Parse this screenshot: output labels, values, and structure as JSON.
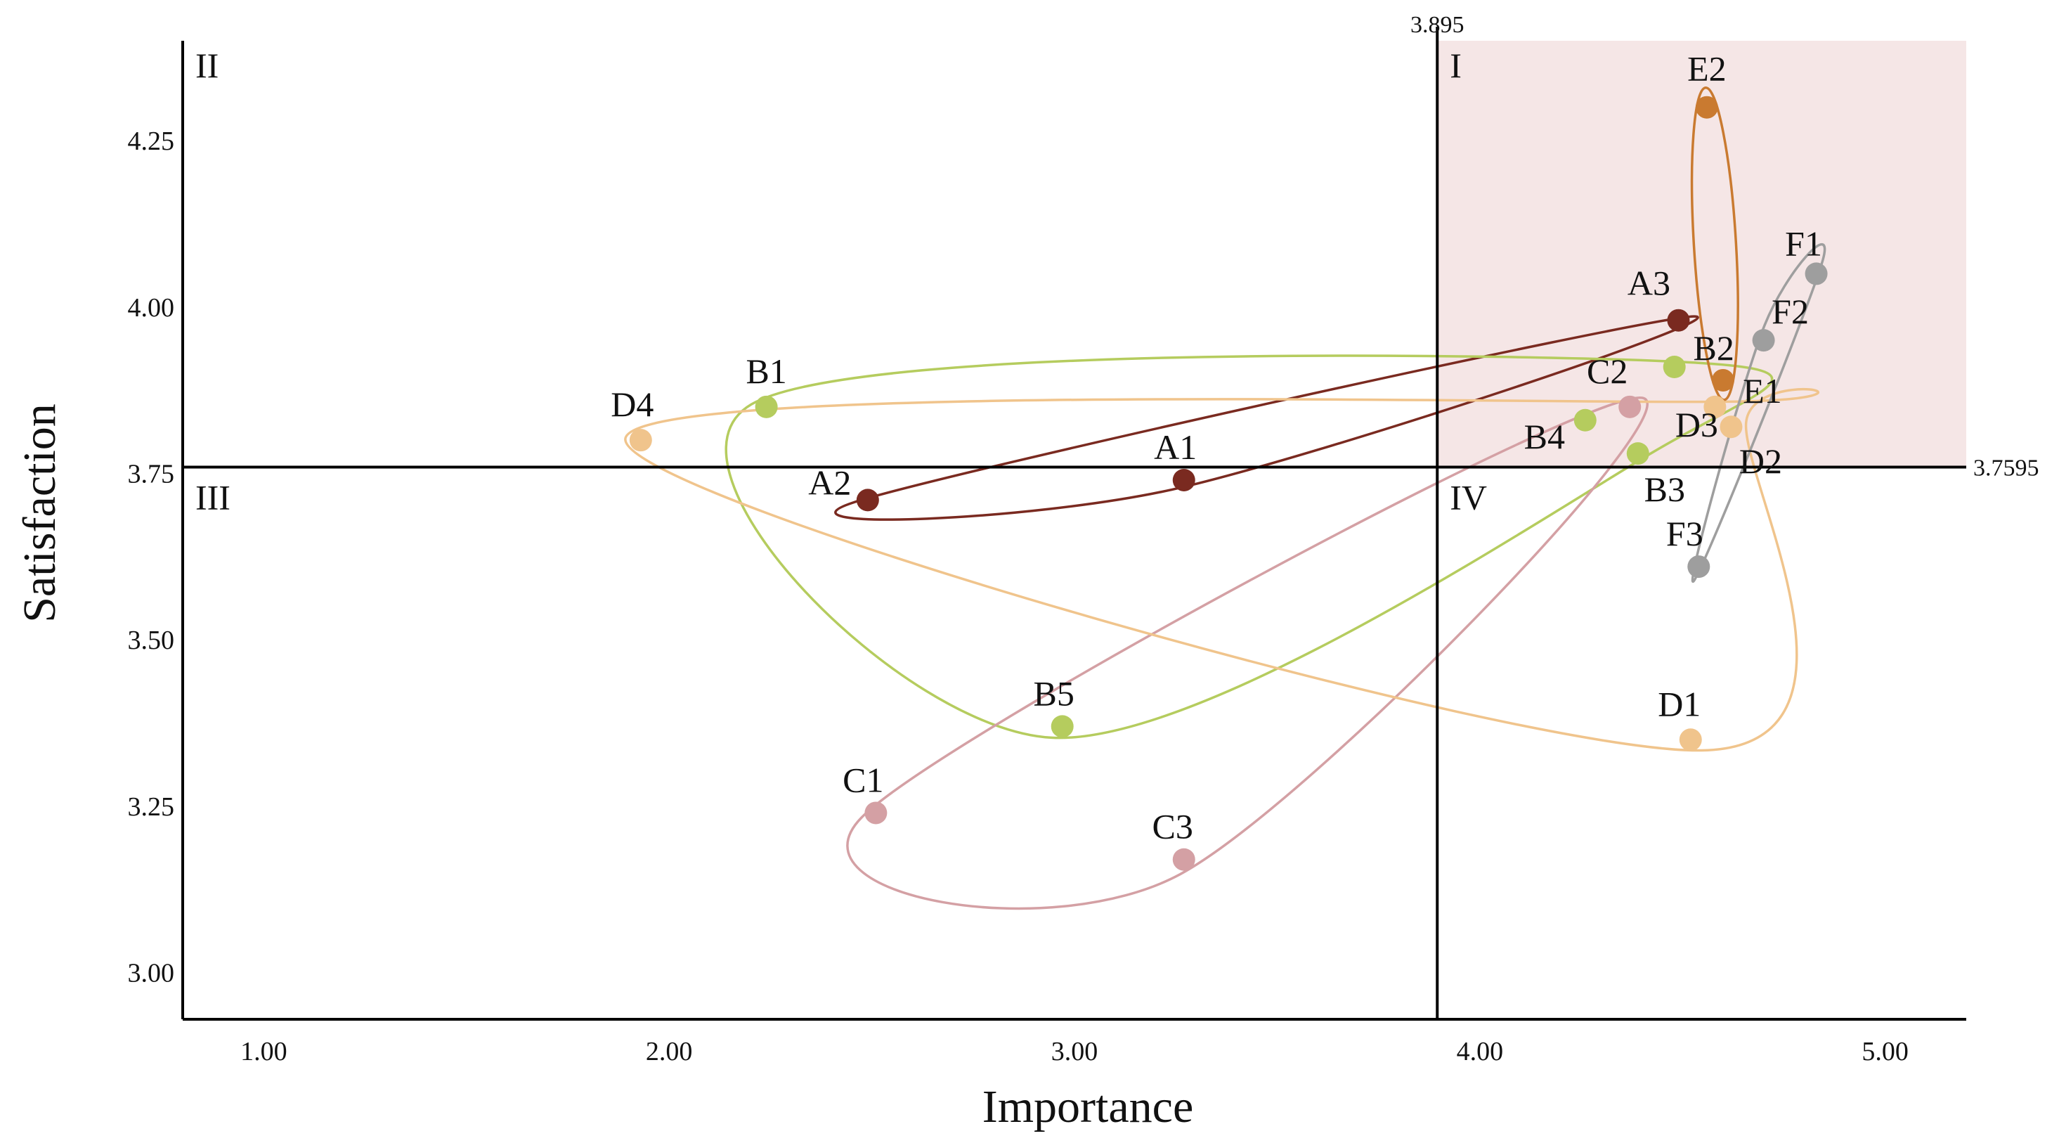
{
  "chart_data": {
    "type": "scatter",
    "title": "",
    "xlabel": "Importance",
    "ylabel": "Satisfaction",
    "xlim": [
      0.8,
      5.2
    ],
    "ylim": [
      2.93,
      4.4
    ],
    "x_ticks": [
      1.0,
      2.0,
      3.0,
      4.0,
      5.0
    ],
    "x_tick_labels": [
      "1.00",
      "2.00",
      "3.00",
      "4.00",
      "5.00"
    ],
    "y_ticks": [
      3.0,
      3.25,
      3.5,
      3.75,
      4.0,
      4.25
    ],
    "y_tick_labels": [
      "3.00",
      "3.25",
      "3.50",
      "3.75",
      "4.00",
      "4.25"
    ],
    "grid": false,
    "reference_lines": {
      "x": 3.895,
      "x_label": "3.895",
      "y": 3.7595,
      "y_label": "3.7595"
    },
    "quadrants": [
      {
        "label": "I",
        "corner": "top-right"
      },
      {
        "label": "II",
        "corner": "top-left"
      },
      {
        "label": "III",
        "corner": "bottom-left"
      },
      {
        "label": "IV",
        "corner": "bottom-right"
      }
    ],
    "highlight_quadrant": "I",
    "highlight_color": "#f5e6e6",
    "series": [
      {
        "name": "A",
        "color": "#7a2a20",
        "points": [
          {
            "label": "A1",
            "x": 3.27,
            "y": 3.74
          },
          {
            "label": "A2",
            "x": 2.49,
            "y": 3.71
          },
          {
            "label": "A3",
            "x": 4.49,
            "y": 3.98
          }
        ]
      },
      {
        "name": "B",
        "color": "#b5cc5e",
        "points": [
          {
            "label": "B1",
            "x": 2.24,
            "y": 3.85
          },
          {
            "label": "B2",
            "x": 4.48,
            "y": 3.91
          },
          {
            "label": "B3",
            "x": 4.39,
            "y": 3.78
          },
          {
            "label": "B4",
            "x": 4.26,
            "y": 3.83
          },
          {
            "label": "B5",
            "x": 2.97,
            "y": 3.37
          }
        ]
      },
      {
        "name": "C",
        "color": "#d4a0a4",
        "points": [
          {
            "label": "C1",
            "x": 2.51,
            "y": 3.24
          },
          {
            "label": "C2",
            "x": 4.37,
            "y": 3.85
          },
          {
            "label": "C3",
            "x": 3.27,
            "y": 3.17
          }
        ]
      },
      {
        "name": "D",
        "color": "#f0c48c",
        "points": [
          {
            "label": "D1",
            "x": 4.52,
            "y": 3.35
          },
          {
            "label": "D2",
            "x": 4.62,
            "y": 3.82
          },
          {
            "label": "D3",
            "x": 4.58,
            "y": 3.85
          },
          {
            "label": "D4",
            "x": 1.93,
            "y": 3.8
          }
        ]
      },
      {
        "name": "E",
        "color": "#c97a30",
        "points": [
          {
            "label": "E1",
            "x": 4.6,
            "y": 3.89
          },
          {
            "label": "E2",
            "x": 4.56,
            "y": 4.3
          }
        ]
      },
      {
        "name": "F",
        "color": "#9e9e9e",
        "points": [
          {
            "label": "F1",
            "x": 4.83,
            "y": 4.05
          },
          {
            "label": "F2",
            "x": 4.7,
            "y": 3.95
          },
          {
            "label": "F3",
            "x": 4.54,
            "y": 3.61
          }
        ]
      }
    ]
  }
}
